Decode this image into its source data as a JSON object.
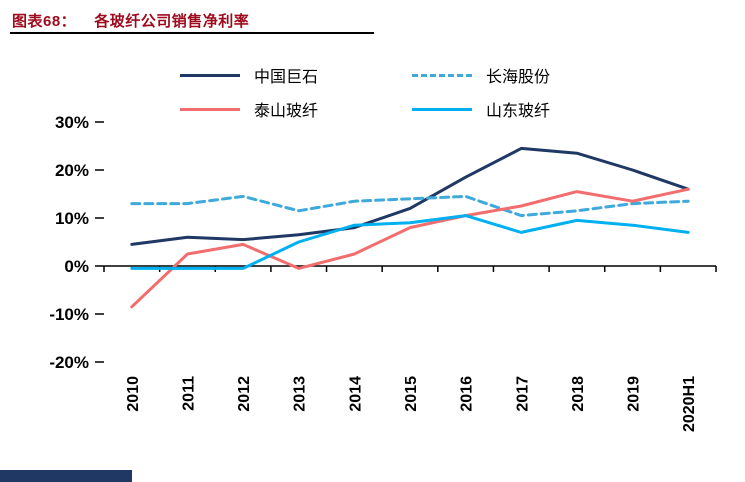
{
  "header": {
    "label": "图表68：",
    "title": "各玻纤公司销售净利率"
  },
  "colors": {
    "title_accent": "#9D0A1E",
    "axis": "#000000",
    "footer_bar": "#1F3864"
  },
  "chart_data": {
    "type": "line",
    "title": "各玻纤公司销售净利率",
    "categories": [
      "2010",
      "2011",
      "2012",
      "2013",
      "2014",
      "2015",
      "2016",
      "2017",
      "2018",
      "2019",
      "2020H1"
    ],
    "series": [
      {
        "name": "中国巨石",
        "color": "#1F3864",
        "dash": "solid",
        "values": [
          4.5,
          6,
          5.5,
          6.5,
          8,
          12,
          18.5,
          24.5,
          23.5,
          20,
          16
        ]
      },
      {
        "name": "长海股份",
        "color": "#3FA9DC",
        "dash": "dashed",
        "values": [
          13,
          13,
          14.5,
          11.5,
          13.5,
          14,
          14.5,
          10.5,
          11.5,
          13,
          13.5
        ]
      },
      {
        "name": "泰山玻纤",
        "color": "#F26D6D",
        "dash": "solid",
        "values": [
          -8.5,
          2.5,
          4.5,
          -0.5,
          2.5,
          8,
          10.5,
          12.5,
          15.5,
          13.5,
          16
        ]
      },
      {
        "name": "山东玻纤",
        "color": "#00B0F0",
        "dash": "solid",
        "values": [
          -0.5,
          -0.5,
          -0.5,
          5,
          8.5,
          9,
          10.5,
          7,
          9.5,
          8.5,
          7
        ]
      }
    ],
    "ylim": [
      -20,
      30
    ],
    "ytick_step": 10,
    "yticks": [
      "30%",
      "20%",
      "10%",
      "0%",
      "-10%",
      "-20%"
    ],
    "legend_position": "top",
    "grid": false
  }
}
